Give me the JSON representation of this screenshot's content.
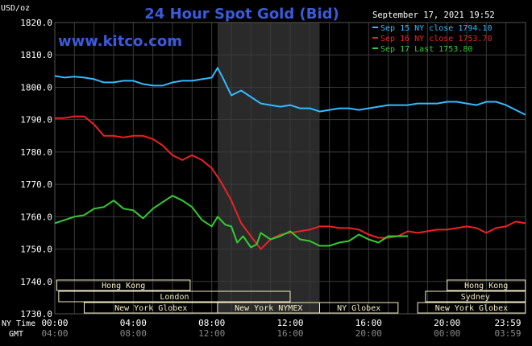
{
  "chart_data": {
    "type": "line",
    "title": "24 Hour Spot Gold (Bid)",
    "timestamp": "September 17, 2021 19:52",
    "watermark": "www.kitco.com",
    "yunit": "USD/oz",
    "ylim": [
      1730,
      1820
    ],
    "yticks": [
      "1820.0",
      "1810.0",
      "1800.0",
      "1790.0",
      "1780.0",
      "1770.0",
      "1760.0",
      "1750.0",
      "1740.0",
      "1730.0"
    ],
    "x_row1_label": "NY Time",
    "x_row2_label": "GMT",
    "x_ticks_ny": [
      "00:00",
      "04:00",
      "08:00",
      "12:00",
      "16:00",
      "20:00",
      "23:59"
    ],
    "x_ticks_gmt": [
      "04:00",
      "08:00",
      "12:00",
      "16:00",
      "20:00",
      "00:00",
      "03:59"
    ],
    "shaded_range_hours": [
      8.3,
      13.5
    ],
    "grid": true,
    "legend_position": "top-right",
    "colors": {
      "background": "#000000",
      "grid": "#3a3a3a",
      "shade": "#2a2a2a",
      "title": "#3b5bdb",
      "text": "#ffffff",
      "band_fill": "#f5edc4"
    },
    "series": [
      {
        "name": "Sep 15 NY close 1794.10",
        "color": "#33bbff",
        "x": [
          0,
          0.5,
          1,
          1.5,
          2,
          2.5,
          3,
          3.5,
          4,
          4.5,
          5,
          5.5,
          6,
          6.5,
          7,
          7.5,
          8,
          8.3,
          8.6,
          9,
          9.5,
          10,
          10.5,
          11,
          11.5,
          12,
          12.5,
          13,
          13.5,
          14,
          14.5,
          15,
          15.5,
          16,
          16.5,
          17,
          17.5,
          18,
          18.5,
          19,
          19.5,
          20,
          20.5,
          21,
          21.5,
          22,
          22.5,
          23,
          23.5,
          23.99
        ],
        "y": [
          1803.5,
          1803.0,
          1803.3,
          1803.0,
          1802.5,
          1801.5,
          1801.5,
          1802.0,
          1802.0,
          1801.0,
          1800.5,
          1800.5,
          1801.5,
          1802.0,
          1802.0,
          1802.5,
          1803.0,
          1806.0,
          1802.5,
          1797.5,
          1799.0,
          1797.0,
          1795.0,
          1794.5,
          1794.0,
          1794.5,
          1793.5,
          1793.5,
          1792.5,
          1793.0,
          1793.5,
          1793.5,
          1793.0,
          1793.5,
          1794.0,
          1794.5,
          1794.5,
          1794.5,
          1795.0,
          1795.0,
          1795.0,
          1795.5,
          1795.5,
          1795.0,
          1794.5,
          1795.5,
          1795.5,
          1794.5,
          1793.0,
          1791.5
        ]
      },
      {
        "name": "Sep 16 NY close 1753.70",
        "color": "#ee2222",
        "x": [
          0,
          0.5,
          1,
          1.5,
          2,
          2.5,
          3,
          3.5,
          4,
          4.5,
          5,
          5.5,
          6,
          6.5,
          7,
          7.5,
          8,
          8.5,
          9,
          9.5,
          10,
          10.5,
          11,
          11.5,
          12,
          12.5,
          13,
          13.5,
          14,
          14.5,
          15,
          15.5,
          16,
          16.5,
          17,
          17.5,
          18,
          18.5,
          19,
          19.5,
          20,
          20.5,
          21,
          21.5,
          22,
          22.5,
          23,
          23.5,
          23.99
        ],
        "y": [
          1790.5,
          1790.5,
          1791.0,
          1791.0,
          1788.5,
          1785.0,
          1785.0,
          1784.5,
          1785.0,
          1785.0,
          1784.0,
          1782.0,
          1779.0,
          1777.5,
          1779.0,
          1777.5,
          1775.0,
          1770.5,
          1765.0,
          1758.0,
          1754.0,
          1750.0,
          1753.0,
          1754.5,
          1755.0,
          1755.5,
          1756.0,
          1757.0,
          1757.0,
          1756.5,
          1756.5,
          1756.0,
          1754.5,
          1753.5,
          1753.5,
          1754.0,
          1755.5,
          1755.0,
          1755.5,
          1756.0,
          1756.0,
          1756.5,
          1757.0,
          1756.5,
          1755.0,
          1756.5,
          1757.0,
          1758.5,
          1758.0
        ]
      },
      {
        "name": "Sep 17 Last 1753.80",
        "color": "#33cc33",
        "x": [
          0,
          0.5,
          1,
          1.5,
          2,
          2.5,
          3,
          3.5,
          4,
          4.5,
          5,
          5.5,
          6,
          6.5,
          7,
          7.5,
          8,
          8.3,
          8.7,
          9,
          9.3,
          9.6,
          10,
          10.3,
          10.5,
          11,
          11.5,
          12,
          12.5,
          13,
          13.5,
          14,
          14.5,
          15,
          15.5,
          16,
          16.5,
          17,
          17.5,
          18
        ],
        "y": [
          1758.0,
          1759.0,
          1760.0,
          1760.5,
          1762.5,
          1763.0,
          1765.0,
          1762.5,
          1762.0,
          1759.5,
          1762.5,
          1764.5,
          1766.5,
          1765.0,
          1763.0,
          1759.0,
          1757.0,
          1760.0,
          1757.5,
          1757.0,
          1752.0,
          1754.0,
          1750.5,
          1751.5,
          1755.0,
          1753.0,
          1754.0,
          1755.5,
          1753.0,
          1752.5,
          1751.0,
          1751.0,
          1752.0,
          1752.5,
          1754.5,
          1753.0,
          1752.0,
          1754.0,
          1754.0,
          1754.0
        ]
      }
    ],
    "session_rows": [
      [
        {
          "label": "Hong Kong",
          "start": 0.1,
          "end": 6.9
        },
        {
          "label": "Hong Kong",
          "start": 20.0,
          "end": 23.99
        }
      ],
      [
        {
          "label": "London",
          "start": 0.2,
          "end": 12.0
        },
        {
          "label": "Sydney",
          "start": 18.9,
          "end": 23.99
        }
      ],
      [
        {
          "label": "New York Globex",
          "start": 1.5,
          "end": 8.3
        },
        {
          "label": "New York NYMEX",
          "start": 8.3,
          "end": 13.5
        },
        {
          "label": "NY Globex",
          "start": 13.5,
          "end": 17.5
        },
        {
          "label": "New York Globex",
          "start": 18.5,
          "end": 23.99
        }
      ]
    ]
  }
}
